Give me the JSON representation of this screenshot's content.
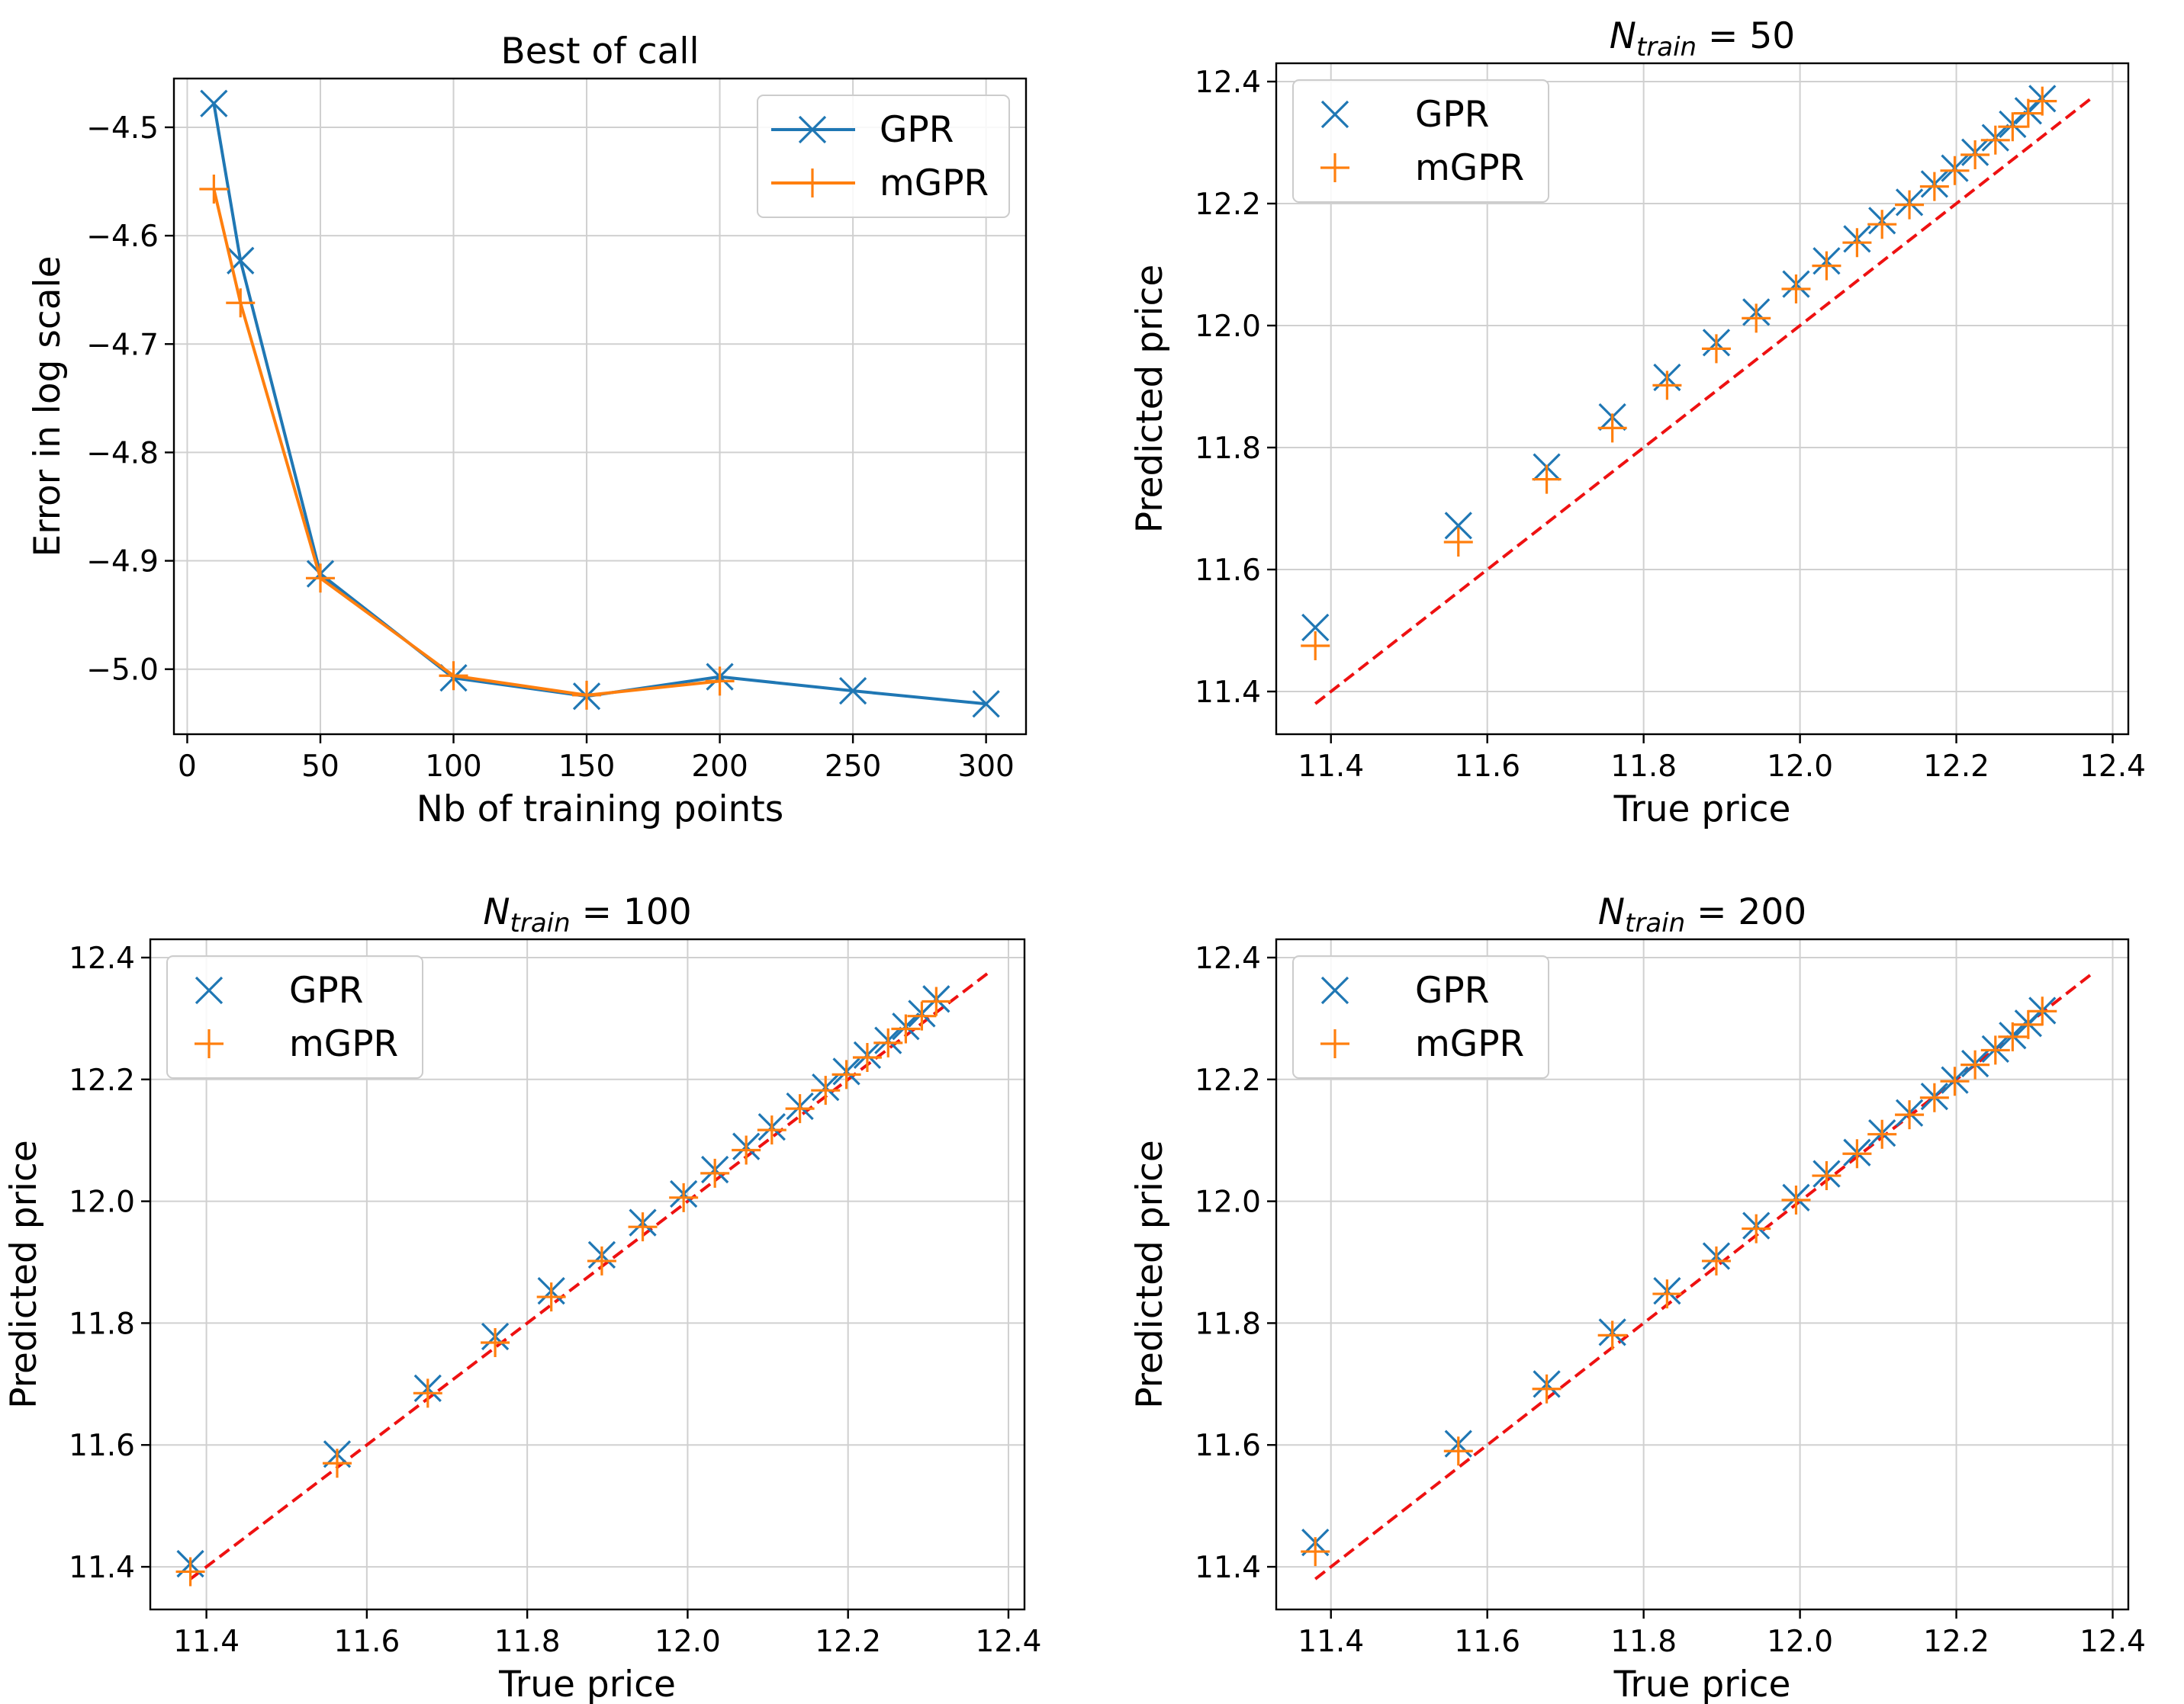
{
  "colors": {
    "gpr": "#1f77b4",
    "mgpr": "#ff7f0e",
    "diagonal": "#ee1111",
    "grid": "#d0d0d0"
  },
  "chart_data": [
    {
      "type": "line",
      "title": "Best of call",
      "xlabel": "Nb of training points",
      "ylabel": "Error in log scale",
      "xlim": [
        -5,
        315
      ],
      "ylim": [
        -5.06,
        -4.455
      ],
      "xticks": [
        0,
        50,
        100,
        150,
        200,
        250,
        300
      ],
      "xtick_labels": [
        "0",
        "50",
        "100",
        "150",
        "200",
        "250",
        "300"
      ],
      "yticks": [
        -5.0,
        -4.9,
        -4.8,
        -4.7,
        -4.6,
        -4.5
      ],
      "ytick_labels": [
        "−5.0",
        "−4.9",
        "−4.8",
        "−4.7",
        "−4.6",
        "−4.5"
      ],
      "legend": {
        "position": "top-right",
        "line": true
      },
      "series": [
        {
          "name": "GPR",
          "marker": "x",
          "line": true,
          "x": [
            10,
            20,
            50,
            100,
            150,
            200,
            250,
            300
          ],
          "y": [
            -4.478,
            -4.623,
            -4.912,
            -5.008,
            -5.025,
            -5.007,
            -5.02,
            -5.032
          ]
        },
        {
          "name": "mGPR",
          "marker": "+",
          "line": true,
          "x": [
            10,
            20,
            50,
            100,
            150,
            200
          ],
          "y": [
            -4.557,
            -4.662,
            -4.916,
            -5.006,
            -5.024,
            -5.011
          ]
        }
      ]
    },
    {
      "type": "scatter",
      "title_main": "N",
      "title_sub": "train",
      "title_rest": " = 50",
      "xlabel": "True price",
      "ylabel": "Predicted price",
      "xlim": [
        11.33,
        12.42
      ],
      "ylim": [
        11.33,
        12.43
      ],
      "xticks": [
        11.4,
        11.6,
        11.8,
        12.0,
        12.2,
        12.4
      ],
      "xtick_labels": [
        "11.4",
        "11.6",
        "11.8",
        "12.0",
        "12.2",
        "12.4"
      ],
      "yticks": [
        11.4,
        11.6,
        11.8,
        12.0,
        12.2,
        12.4
      ],
      "ytick_labels": [
        "11.4",
        "11.6",
        "11.8",
        "12.0",
        "12.2",
        "12.4"
      ],
      "legend": {
        "position": "top-left",
        "line": false
      },
      "diagonal": [
        11.38,
        12.375
      ],
      "series": [
        {
          "name": "GPR",
          "marker": "x",
          "x": [
            11.38,
            11.563,
            11.676,
            11.76,
            11.83,
            11.893,
            11.944,
            11.995,
            12.034,
            12.073,
            12.105,
            12.14,
            12.172,
            12.198,
            12.224,
            12.25,
            12.272,
            12.292,
            12.31
          ],
          "y": [
            11.505,
            11.672,
            11.768,
            11.85,
            11.915,
            11.972,
            12.022,
            12.068,
            12.106,
            12.142,
            12.172,
            12.202,
            12.232,
            12.258,
            12.284,
            12.308,
            12.33,
            12.352,
            12.372
          ]
        },
        {
          "name": "mGPR",
          "marker": "+",
          "x": [
            11.38,
            11.563,
            11.676,
            11.76,
            11.83,
            11.893,
            11.944,
            11.995,
            12.034,
            12.073,
            12.105,
            12.14,
            12.172,
            12.198,
            12.224,
            12.25,
            12.272,
            12.292,
            12.31
          ],
          "y": [
            11.475,
            11.645,
            11.748,
            11.832,
            11.902,
            11.962,
            12.012,
            12.06,
            12.098,
            12.136,
            12.166,
            12.198,
            12.228,
            12.254,
            12.28,
            12.304,
            12.326,
            12.348,
            12.368
          ]
        }
      ]
    },
    {
      "type": "scatter",
      "title_main": "N",
      "title_sub": "train",
      "title_rest": " = 100",
      "xlabel": "True price",
      "ylabel": "Predicted price",
      "xlim": [
        11.33,
        12.42
      ],
      "ylim": [
        11.33,
        12.43
      ],
      "xticks": [
        11.4,
        11.6,
        11.8,
        12.0,
        12.2,
        12.4
      ],
      "xtick_labels": [
        "11.4",
        "11.6",
        "11.8",
        "12.0",
        "12.2",
        "12.4"
      ],
      "yticks": [
        11.4,
        11.6,
        11.8,
        12.0,
        12.2,
        12.4
      ],
      "ytick_labels": [
        "11.4",
        "11.6",
        "11.8",
        "12.0",
        "12.2",
        "12.4"
      ],
      "legend": {
        "position": "top-left",
        "line": false
      },
      "diagonal": [
        11.38,
        12.375
      ],
      "series": [
        {
          "name": "GPR",
          "marker": "x",
          "x": [
            11.38,
            11.563,
            11.676,
            11.76,
            11.83,
            11.893,
            11.944,
            11.995,
            12.034,
            12.073,
            12.105,
            12.14,
            12.172,
            12.198,
            12.224,
            12.25,
            12.272,
            12.292,
            12.31
          ],
          "y": [
            11.405,
            11.585,
            11.693,
            11.778,
            11.853,
            11.912,
            11.965,
            12.012,
            12.052,
            12.09,
            12.122,
            12.156,
            12.187,
            12.213,
            12.24,
            12.264,
            12.287,
            12.308,
            12.332
          ]
        },
        {
          "name": "mGPR",
          "marker": "+",
          "x": [
            11.38,
            11.563,
            11.676,
            11.76,
            11.83,
            11.893,
            11.944,
            11.995,
            12.034,
            12.073,
            12.105,
            12.14,
            12.172,
            12.198,
            12.224,
            12.25,
            12.272,
            12.292,
            12.31
          ],
          "y": [
            11.392,
            11.57,
            11.685,
            11.768,
            11.843,
            11.902,
            11.958,
            12.006,
            12.046,
            12.084,
            12.117,
            12.152,
            12.182,
            12.208,
            12.236,
            12.26,
            12.283,
            12.304,
            12.328
          ]
        }
      ]
    },
    {
      "type": "scatter",
      "title_main": "N",
      "title_sub": "train",
      "title_rest": " = 200",
      "xlabel": "True price",
      "ylabel": "Predicted price",
      "xlim": [
        11.33,
        12.42
      ],
      "ylim": [
        11.33,
        12.43
      ],
      "xticks": [
        11.4,
        11.6,
        11.8,
        12.0,
        12.2,
        12.4
      ],
      "xtick_labels": [
        "11.4",
        "11.6",
        "11.8",
        "12.0",
        "12.2",
        "12.4"
      ],
      "yticks": [
        11.4,
        11.6,
        11.8,
        12.0,
        12.2,
        12.4
      ],
      "ytick_labels": [
        "11.4",
        "11.6",
        "11.8",
        "12.0",
        "12.2",
        "12.4"
      ],
      "legend": {
        "position": "top-left",
        "line": false
      },
      "diagonal": [
        11.38,
        12.375
      ],
      "series": [
        {
          "name": "GPR",
          "marker": "x",
          "x": [
            11.38,
            11.563,
            11.676,
            11.76,
            11.83,
            11.893,
            11.944,
            11.995,
            12.034,
            12.073,
            12.105,
            12.14,
            12.172,
            12.198,
            12.224,
            12.25,
            12.272,
            12.292,
            12.31
          ],
          "y": [
            11.44,
            11.602,
            11.7,
            11.785,
            11.853,
            11.91,
            11.96,
            12.006,
            12.045,
            12.08,
            12.112,
            12.145,
            12.172,
            12.199,
            12.226,
            12.25,
            12.272,
            12.292,
            12.313
          ]
        },
        {
          "name": "mGPR",
          "marker": "+",
          "x": [
            11.38,
            11.563,
            11.676,
            11.76,
            11.83,
            11.893,
            11.944,
            11.995,
            12.034,
            12.073,
            12.105,
            12.14,
            12.172,
            12.198,
            12.224,
            12.25,
            12.272,
            12.292,
            12.31
          ],
          "y": [
            11.425,
            11.59,
            11.692,
            11.78,
            11.848,
            11.902,
            11.955,
            12.002,
            12.042,
            12.078,
            12.11,
            12.142,
            12.17,
            12.197,
            12.224,
            12.248,
            12.27,
            12.29,
            12.312
          ]
        }
      ]
    }
  ]
}
